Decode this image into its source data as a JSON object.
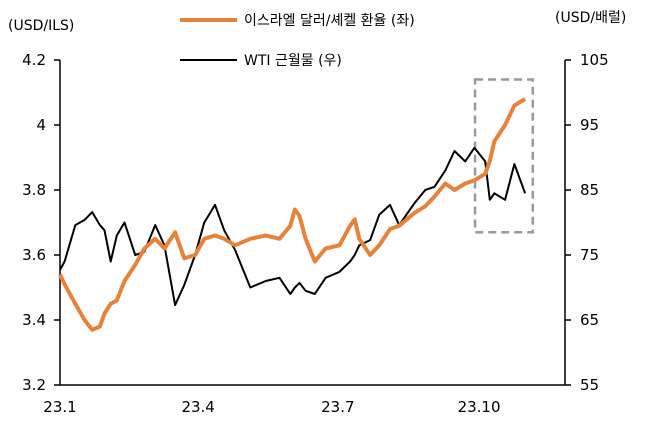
{
  "chart_data": {
    "type": "line",
    "left_axis_label": "(USD/ILS)",
    "right_axis_label": "(USD/배럴)",
    "y_left": {
      "range": [
        3.2,
        4.2
      ],
      "ticks": [
        "3.2",
        "3.4",
        "3.6",
        "3.8",
        "4",
        "4.2"
      ],
      "tick_values": [
        3.2,
        3.4,
        3.6,
        3.8,
        4.0,
        4.2
      ]
    },
    "y_right": {
      "range": [
        55,
        105
      ],
      "ticks": [
        "55",
        "65",
        "75",
        "85",
        "95",
        "105"
      ],
      "tick_values": [
        55,
        65,
        75,
        85,
        95,
        105
      ]
    },
    "x_ticks": [
      {
        "label": "23.1",
        "date": "2023-01-01"
      },
      {
        "label": "23.4",
        "date": "2023-04-01"
      },
      {
        "label": "23.7",
        "date": "2023-07-01"
      },
      {
        "label": "23.10",
        "date": "2023-10-01"
      }
    ],
    "grid": false,
    "legend_position": "top",
    "highlight_box": {
      "from": "2023-10-01",
      "to": "2023-11-05",
      "style": "dashed",
      "color": "#999999"
    },
    "x": [
      "2023-01-01",
      "2023-01-04",
      "2023-01-11",
      "2023-01-17",
      "2023-01-22",
      "2023-01-27",
      "2023-01-30",
      "2023-02-03",
      "2023-02-07",
      "2023-02-12",
      "2023-02-19",
      "2023-02-25",
      "2023-03-04",
      "2023-03-10",
      "2023-03-17",
      "2023-03-23",
      "2023-03-30",
      "2023-04-05",
      "2023-04-12",
      "2023-04-18",
      "2023-04-25",
      "2023-05-05",
      "2023-05-15",
      "2023-05-24",
      "2023-05-31",
      "2023-06-03",
      "2023-06-06",
      "2023-06-10",
      "2023-06-16",
      "2023-06-23",
      "2023-07-02",
      "2023-07-09",
      "2023-07-12",
      "2023-07-15",
      "2023-07-22",
      "2023-07-28",
      "2023-08-04",
      "2023-08-10",
      "2023-08-20",
      "2023-08-27",
      "2023-09-02",
      "2023-09-09",
      "2023-09-15",
      "2023-09-22",
      "2023-09-28",
      "2023-10-05",
      "2023-10-08",
      "2023-10-11",
      "2023-10-18",
      "2023-10-24",
      "2023-10-31"
    ],
    "series": [
      {
        "name": "이스라엘 달러/셰켈 환율 (좌)",
        "axis": "left",
        "color": "#E8823A",
        "values": [
          3.54,
          3.51,
          3.45,
          3.4,
          3.37,
          3.38,
          3.42,
          3.45,
          3.46,
          3.52,
          3.57,
          3.62,
          3.65,
          3.62,
          3.67,
          3.59,
          3.6,
          3.65,
          3.66,
          3.65,
          3.63,
          3.65,
          3.66,
          3.65,
          3.69,
          3.74,
          3.72,
          3.65,
          3.58,
          3.62,
          3.63,
          3.69,
          3.71,
          3.65,
          3.6,
          3.63,
          3.68,
          3.69,
          3.73,
          3.75,
          3.78,
          3.82,
          3.8,
          3.82,
          3.83,
          3.85,
          3.89,
          3.95,
          4.0,
          4.06,
          4.08
        ]
      },
      {
        "name": "WTI 근월물 (우)",
        "axis": "right",
        "color": "#000000",
        "values": [
          72.7,
          74.0,
          79.6,
          80.4,
          81.6,
          79.6,
          78.8,
          74.0,
          78.0,
          80.0,
          75.0,
          75.5,
          79.6,
          76.5,
          67.3,
          70.4,
          75.0,
          80.0,
          82.7,
          78.8,
          75.8,
          70.0,
          71.0,
          71.5,
          69.0,
          70.0,
          70.7,
          69.5,
          69.0,
          71.5,
          72.4,
          74.0,
          75.0,
          76.5,
          77.3,
          81.2,
          82.7,
          79.6,
          83.0,
          85.0,
          85.5,
          88.0,
          91.0,
          89.4,
          91.5,
          89.4,
          83.5,
          84.5,
          83.5,
          89.0,
          84.5
        ]
      }
    ]
  }
}
